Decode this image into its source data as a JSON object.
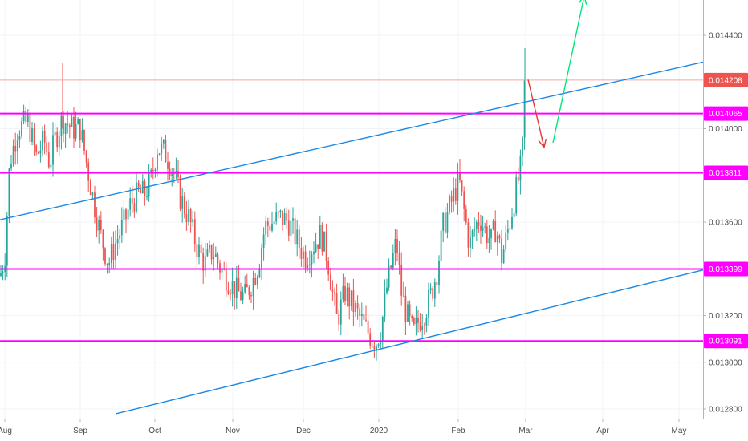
{
  "chart_data": {
    "type": "candlestick",
    "title": "",
    "y_axis": {
      "position": "right",
      "ticks": [
        "0.012800",
        "0.013000",
        "0.013200",
        "0.013600",
        "0.014000",
        "0.014400"
      ],
      "ylim": [
        0.01278,
        0.01455
      ]
    },
    "x_axis": {
      "labels": [
        "Aug",
        "Sep",
        "Oct",
        "Nov",
        "Dec",
        "2020",
        "Feb",
        "Mar",
        "Apr",
        "May"
      ]
    },
    "price_tags": [
      {
        "value": "0.014208",
        "color": "#ef5350"
      },
      {
        "value": "0.014065",
        "color": "#ff00ff"
      },
      {
        "value": "0.013811",
        "color": "#ff00ff"
      },
      {
        "value": "0.013399",
        "color": "#ff00ff"
      },
      {
        "value": "0.013091",
        "color": "#ff00ff"
      }
    ],
    "horizontal_levels": [
      0.014065,
      0.013811,
      0.013399,
      0.013091
    ],
    "last_price": 0.014208,
    "trendlines": [
      {
        "color": "#1e88e5",
        "from": [
          "Aug",
          0.01361
        ],
        "to": [
          "May",
          0.014285
        ]
      },
      {
        "color": "#1e88e5",
        "from": [
          "Sep",
          0.01278
        ],
        "to": [
          "May",
          0.013395
        ]
      }
    ],
    "arrows": [
      {
        "color": "#e53935",
        "from": [
          "Mar",
          0.01421
        ],
        "to": [
          "Mar",
          0.01392
        ]
      },
      {
        "color": "#00e676",
        "from": [
          "Mar",
          0.01394
        ],
        "to": [
          "Apr",
          0.01455
        ]
      }
    ],
    "colors": {
      "up": "#26a69a",
      "down": "#ef5350",
      "level": "#ff00ff",
      "trend": "#1e88e5"
    }
  }
}
